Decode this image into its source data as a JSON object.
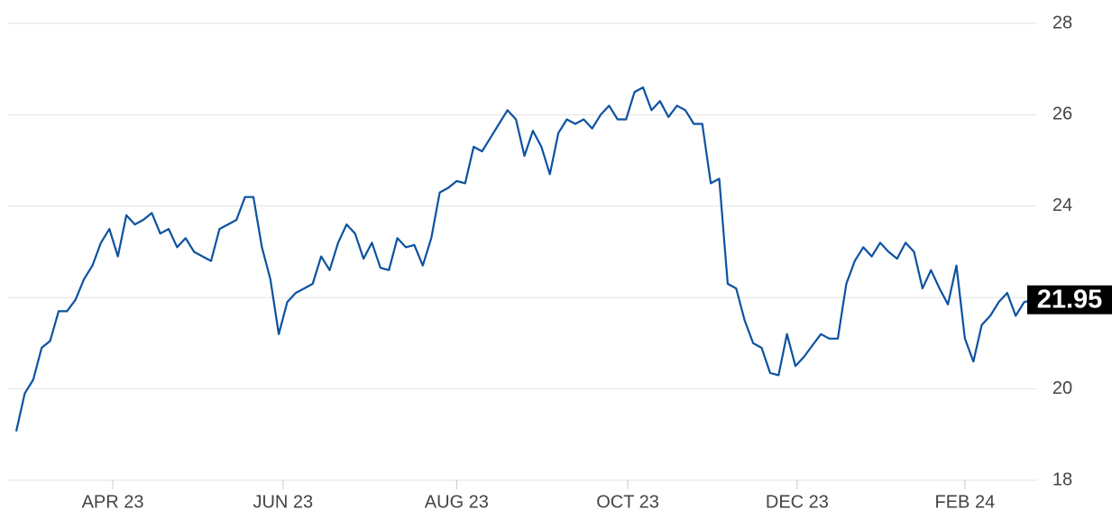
{
  "chart_data": {
    "type": "line",
    "series": [
      {
        "color": "#0b52a0",
        "values": [
          19.07,
          19.9,
          20.2,
          20.9,
          21.05,
          21.7,
          21.7,
          21.95,
          22.4,
          22.7,
          23.2,
          23.5,
          22.9,
          23.8,
          23.6,
          23.7,
          23.85,
          23.4,
          23.5,
          23.1,
          23.3,
          23.0,
          22.9,
          22.8,
          23.5,
          23.6,
          23.7,
          24.2,
          24.2,
          23.1,
          22.4,
          21.2,
          21.9,
          22.1,
          22.2,
          22.3,
          22.9,
          22.6,
          23.2,
          23.6,
          23.4,
          22.85,
          23.2,
          22.65,
          22.6,
          23.3,
          23.1,
          23.15,
          22.7,
          23.3,
          24.3,
          24.4,
          24.55,
          24.5,
          25.3,
          25.2,
          25.5,
          25.8,
          26.1,
          25.9,
          25.1,
          25.65,
          25.3,
          24.7,
          25.6,
          25.9,
          25.8,
          25.9,
          25.7,
          26.0,
          26.2,
          25.9,
          25.9,
          26.5,
          26.6,
          26.1,
          26.3,
          25.95,
          26.2,
          26.1,
          25.8,
          25.8,
          24.5,
          24.6,
          22.3,
          22.2,
          21.5,
          21.0,
          20.9,
          20.35,
          20.3,
          21.2,
          20.5,
          20.7,
          20.95,
          21.2,
          21.1,
          21.1,
          22.3,
          22.8,
          23.1,
          22.9,
          23.2,
          23.0,
          22.85,
          23.2,
          23.0,
          22.2,
          22.6,
          22.2,
          21.85,
          22.7,
          21.1,
          20.6,
          21.4,
          21.6,
          21.9,
          22.1,
          21.6,
          21.9,
          21.95
        ]
      }
    ],
    "xlim": [
      0,
      120
    ],
    "xticks": [
      {
        "value": 11.4,
        "label": "APR 23"
      },
      {
        "value": 31.5,
        "label": "JUN 23"
      },
      {
        "value": 52.0,
        "label": "AUG 23"
      },
      {
        "value": 72.2,
        "label": "OCT 23"
      },
      {
        "value": 92.2,
        "label": "DEC 23"
      },
      {
        "value": 112.0,
        "label": "FEB 24"
      }
    ],
    "ylim": [
      18,
      28
    ],
    "yticks": [
      18,
      20,
      22,
      24,
      26,
      28
    ],
    "grid": true
  }
}
